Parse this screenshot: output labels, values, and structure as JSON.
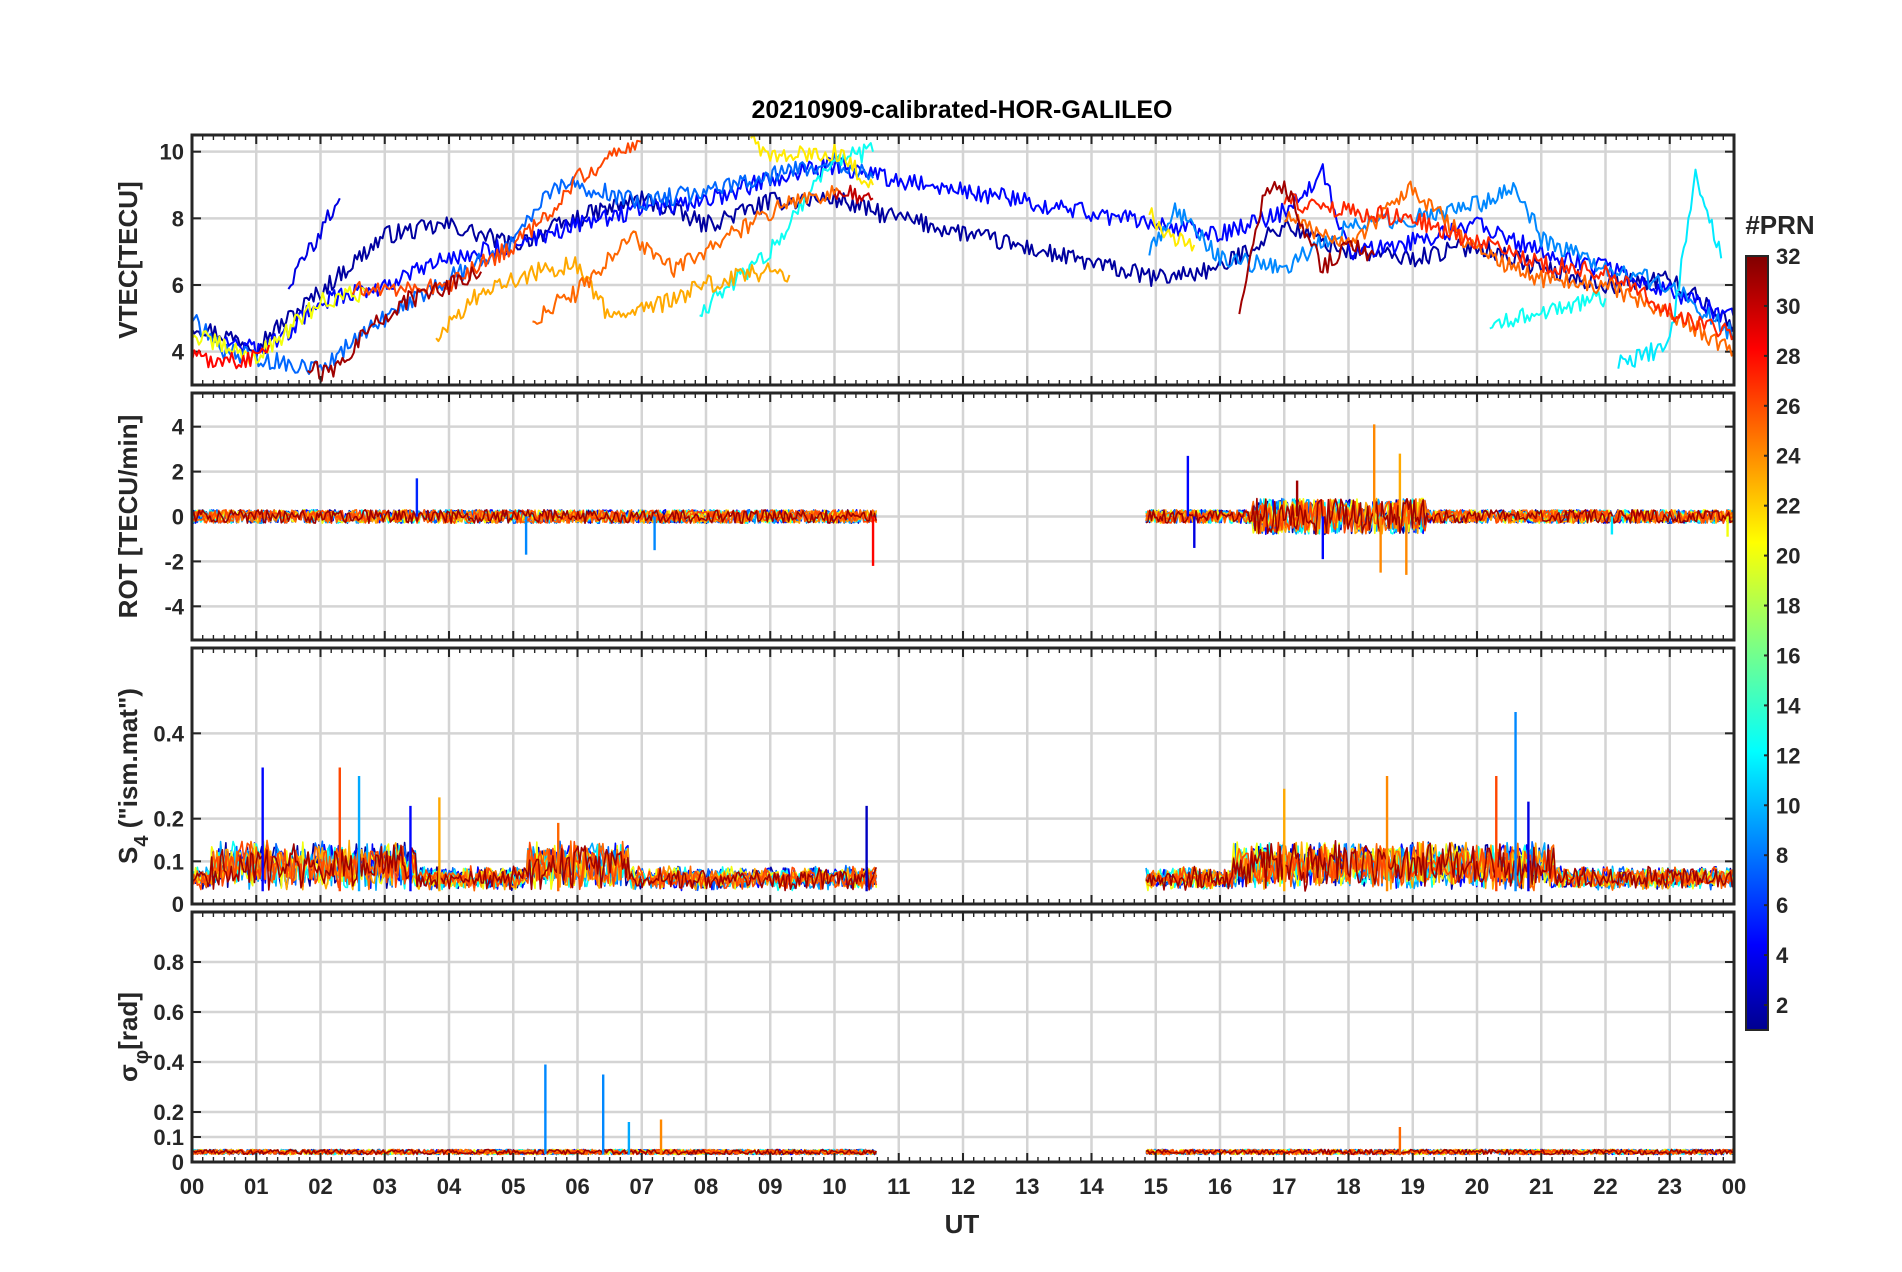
{
  "chart_data": {
    "type": "line",
    "title": "20210909-calibrated-HOR-GALILEO",
    "xlabel": "UT",
    "x_ticks": [
      "00",
      "01",
      "02",
      "03",
      "04",
      "05",
      "06",
      "07",
      "08",
      "09",
      "10",
      "11",
      "12",
      "13",
      "14",
      "15",
      "16",
      "17",
      "18",
      "19",
      "20",
      "21",
      "22",
      "23",
      "00"
    ],
    "xlim_hours": [
      0,
      24
    ],
    "grid": true,
    "colorbar": {
      "label": "#PRN",
      "range": [
        1,
        32
      ],
      "ticks": [
        "32",
        "30",
        "28",
        "26",
        "24",
        "22",
        "20",
        "18",
        "16",
        "14",
        "12",
        "10",
        "8",
        "6",
        "4",
        "2"
      ],
      "colormap": "jet",
      "colors": [
        "#00008F",
        "#0000FF",
        "#0080FF",
        "#00FFFF",
        "#80FF80",
        "#FFFF00",
        "#FF8000",
        "#FF0000",
        "#800000"
      ]
    },
    "data_gap_hours": [
      10.65,
      14.85
    ],
    "panels": [
      {
        "id": "vtec",
        "ylabel": "VTEC[TECU]",
        "ylim": [
          3,
          10.5
        ],
        "yticks": [
          "10",
          "8",
          "6",
          "4"
        ],
        "series": [
          {
            "prn": 2,
            "x": [
              0,
              1,
              2,
              3,
              4,
              5,
              6,
              7,
              8,
              9,
              10,
              10.6,
              15,
              16,
              17,
              18,
              19,
              20,
              21,
              22,
              23,
              24
            ],
            "y": [
              4.8,
              4.2,
              5.8,
              7.5,
              7.8,
              7.2,
              8.0,
              8.6,
              7.8,
              8.5,
              8.6,
              8.2,
              6.2,
              6.5,
              7.8,
              7.0,
              6.8,
              7.2,
              6.5,
              6.0,
              6.2,
              4.8
            ]
          },
          {
            "prn": 4,
            "x": [
              1.5,
              2,
              2.3
            ],
            "y": [
              6.0,
              7.6,
              8.6
            ]
          },
          {
            "prn": 5,
            "x": [
              0.5,
              1,
              1.5,
              2,
              3,
              4,
              5,
              6,
              7,
              8,
              9,
              10,
              10.6,
              15.1,
              16,
              17,
              17.6,
              18,
              19,
              20,
              21,
              22,
              23,
              24
            ],
            "y": [
              4.5,
              4.0,
              4.6,
              5.5,
              6.0,
              6.8,
              7.2,
              7.8,
              8.3,
              8.5,
              9.2,
              9.6,
              9.3,
              7.8,
              7.5,
              8.2,
              9.4,
              7.0,
              7.3,
              7.8,
              7.0,
              6.5,
              5.8,
              5.0
            ]
          },
          {
            "prn": 8,
            "x": [
              0,
              0.5,
              1,
              2,
              3,
              4,
              5,
              5.5,
              6,
              7,
              8,
              9,
              10,
              10.6
            ],
            "y": [
              5.0,
              4.0,
              3.8,
              3.5,
              5.0,
              6.2,
              7.2,
              8.8,
              9.0,
              8.5,
              8.8,
              9.3,
              9.7,
              9.2
            ]
          },
          {
            "prn": 9,
            "x": [
              14.9,
              15.3,
              16,
              17,
              18,
              19,
              20,
              20.6,
              21,
              22,
              23,
              24
            ],
            "y": [
              7.0,
              8.3,
              6.8,
              6.5,
              7.8,
              8.0,
              8.4,
              9.0,
              7.4,
              6.5,
              6.0,
              4.5
            ]
          },
          {
            "prn": 12,
            "x": [
              22.2,
              23,
              23.4,
              23.8
            ],
            "y": [
              3.6,
              4.2,
              9.4,
              6.8
            ]
          },
          {
            "prn": 13,
            "x": [
              7.9,
              8.5,
              9,
              9.5,
              10,
              10.6
            ],
            "y": [
              5.2,
              6.2,
              7.0,
              8.5,
              9.8,
              10.0
            ]
          },
          {
            "prn": 13,
            "x": [
              20.2,
              21,
              22
            ],
            "y": [
              4.8,
              5.2,
              5.6
            ]
          },
          {
            "prn": 20,
            "x": [
              0,
              1,
              2,
              2.7
            ],
            "y": [
              4.5,
              3.8,
              5.5,
              5.8
            ]
          },
          {
            "prn": 21,
            "x": [
              8.7,
              9,
              10,
              10.6
            ],
            "y": [
              10.5,
              9.8,
              10.0,
              9.0
            ]
          },
          {
            "prn": 21,
            "x": [
              14.9,
              15.2,
              15.6
            ],
            "y": [
              8.2,
              7.4,
              7.2
            ]
          },
          {
            "prn": 23,
            "x": [
              3.8,
              4.5,
              5.5,
              6,
              6.5,
              7,
              7.5,
              8,
              8.5,
              9,
              9.3
            ],
            "y": [
              4.5,
              5.8,
              6.5,
              6.6,
              5.0,
              5.2,
              5.6,
              6.0,
              6.3,
              6.4,
              6.3
            ]
          },
          {
            "prn": 25,
            "x": [
              5.3,
              6,
              6.8,
              7.5,
              8,
              8.8,
              9.5,
              10.1
            ],
            "y": [
              5.0,
              5.8,
              7.5,
              6.5,
              7.0,
              8.0,
              8.6,
              8.8
            ]
          },
          {
            "prn": 25,
            "x": [
              17,
              18,
              19,
              20,
              21,
              22,
              23,
              24
            ],
            "y": [
              8.0,
              7.2,
              8.9,
              7.0,
              6.2,
              6.0,
              5.2,
              4.0
            ]
          },
          {
            "prn": 26,
            "x": [
              2.5,
              3,
              4,
              5,
              5.5,
              6,
              6.5,
              7
            ],
            "y": [
              5.8,
              5.9,
              6.0,
              7.2,
              8.0,
              9.2,
              9.8,
              10.3
            ]
          },
          {
            "prn": 27,
            "x": [
              17,
              18,
              19,
              20,
              21,
              22,
              23,
              24
            ],
            "y": [
              8.5,
              8.2,
              8.0,
              7.3,
              6.6,
              6.4,
              5.2,
              4.5
            ]
          },
          {
            "prn": 28,
            "x": [
              0,
              0.8,
              1.2
            ],
            "y": [
              3.8,
              3.7,
              4.2
            ]
          },
          {
            "prn": 30,
            "x": [
              10,
              10.6
            ],
            "y": [
              8.8,
              8.6
            ]
          },
          {
            "prn": 31,
            "x": [
              1.8,
              2.2,
              2.8,
              3.3,
              4,
              4.5
            ],
            "y": [
              3.5,
              3.3,
              4.8,
              5.5,
              6.0,
              6.4
            ]
          },
          {
            "prn": 31,
            "x": [
              16.3,
              16.7,
              17,
              17.6,
              18,
              18.4
            ],
            "y": [
              5.2,
              8.8,
              9.0,
              6.5,
              7.2,
              6.9
            ]
          }
        ]
      },
      {
        "id": "rot",
        "ylabel": "ROT [TECU/min]",
        "ylim": [
          -5.5,
          5.5
        ],
        "yticks": [
          "4",
          "2",
          "0",
          "-2",
          "-4"
        ],
        "spikes": [
          {
            "prn": 6,
            "x": 3.5,
            "y": 1.7
          },
          {
            "prn": 9,
            "x": 5.2,
            "y": -1.7
          },
          {
            "prn": 9,
            "x": 7.2,
            "y": -1.5
          },
          {
            "prn": 28,
            "x": 10.6,
            "y": -2.2
          },
          {
            "prn": 5,
            "x": 15.5,
            "y": 2.7
          },
          {
            "prn": 4,
            "x": 15.6,
            "y": -1.4
          },
          {
            "prn": 31,
            "x": 17.2,
            "y": 1.6
          },
          {
            "prn": 5,
            "x": 17.6,
            "y": -1.9
          },
          {
            "prn": 24,
            "x": 18.4,
            "y": 4.1
          },
          {
            "prn": 24,
            "x": 18.5,
            "y": -2.5
          },
          {
            "prn": 23,
            "x": 18.8,
            "y": 2.8
          },
          {
            "prn": 24,
            "x": 18.9,
            "y": -2.6
          },
          {
            "prn": 12,
            "x": 22.1,
            "y": -0.8
          },
          {
            "prn": 20,
            "x": 23.9,
            "y": -0.9
          }
        ]
      },
      {
        "id": "s4",
        "ylabel": "S4 (\"ism.mat\")",
        "ylabel_main": "S",
        "ylabel_sub": "4",
        "ylabel_rest": " (\"ism.mat\")",
        "ylim": [
          0,
          0.6
        ],
        "yticks": [
          "0.4",
          "0.2",
          "0.1",
          "0"
        ],
        "spikes": [
          {
            "prn": 5,
            "x": 1.1,
            "y": 0.32
          },
          {
            "prn": 26,
            "x": 2.3,
            "y": 0.32
          },
          {
            "prn": 10,
            "x": 2.6,
            "y": 0.3
          },
          {
            "prn": 5,
            "x": 3.4,
            "y": 0.23
          },
          {
            "prn": 23,
            "x": 3.85,
            "y": 0.25
          },
          {
            "prn": 25,
            "x": 5.7,
            "y": 0.19
          },
          {
            "prn": 3,
            "x": 10.5,
            "y": 0.23
          },
          {
            "prn": 23,
            "x": 17,
            "y": 0.27
          },
          {
            "prn": 24,
            "x": 18.6,
            "y": 0.3
          },
          {
            "prn": 26,
            "x": 20.3,
            "y": 0.3
          },
          {
            "prn": 9,
            "x": 20.6,
            "y": 0.45
          },
          {
            "prn": 4,
            "x": 20.8,
            "y": 0.24
          }
        ]
      },
      {
        "id": "sigma",
        "ylabel": "σφ[rad]",
        "ylabel_main": "σ",
        "ylabel_sub": "φ",
        "ylabel_rest": "[rad]",
        "ylim": [
          0,
          1
        ],
        "yticks": [
          "0.8",
          "0.6",
          "0.4",
          "0.2",
          "0.1",
          "0"
        ],
        "spikes": [
          {
            "prn": 9,
            "x": 5.5,
            "y": 0.39
          },
          {
            "prn": 9,
            "x": 6.4,
            "y": 0.35
          },
          {
            "prn": 10,
            "x": 6.8,
            "y": 0.16
          },
          {
            "prn": 24,
            "x": 7.3,
            "y": 0.17
          },
          {
            "prn": 25,
            "x": 18.8,
            "y": 0.14
          }
        ]
      }
    ]
  }
}
